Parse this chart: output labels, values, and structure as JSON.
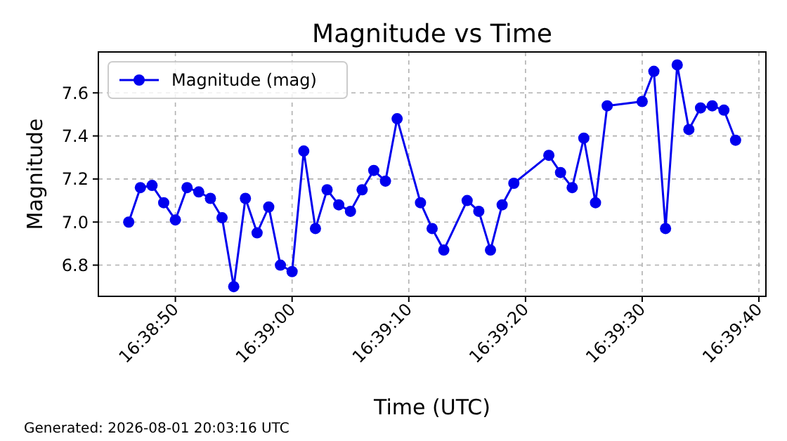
{
  "chart_data": {
    "type": "line",
    "title": "Magnitude vs Time",
    "xlabel": "Time (UTC)",
    "ylabel": "Magnitude",
    "annotations": [
      "Generated: 2026-08-01 20:03:16 UTC"
    ],
    "x": [
      16.646111,
      16.646389,
      16.646667,
      16.646944,
      16.647222,
      16.6475,
      16.647778,
      16.648056,
      16.648333,
      16.648611,
      16.648889,
      16.649167,
      16.649444,
      16.649722,
      16.65,
      16.650278,
      16.650556,
      16.650833,
      16.651111,
      16.651389,
      16.651667,
      16.651944,
      16.652222,
      16.6525,
      16.653056,
      16.653333,
      16.653611,
      16.654167,
      16.654444,
      16.654722,
      16.655,
      16.655278,
      16.656111,
      16.656389,
      16.656667,
      16.656944,
      16.657222,
      16.6575,
      16.658333,
      16.658611,
      16.658889,
      16.659167,
      16.659444,
      16.659722,
      16.66,
      16.660278,
      16.660556
    ],
    "series": [
      {
        "name": "Magnitude (mag)",
        "color": "#0000ee",
        "values": [
          7.0,
          7.16,
          7.17,
          7.09,
          7.01,
          7.16,
          7.14,
          7.11,
          7.02,
          6.7,
          7.11,
          6.95,
          7.07,
          6.8,
          6.77,
          7.33,
          6.97,
          7.15,
          7.08,
          7.05,
          7.15,
          7.24,
          7.19,
          7.48,
          7.09,
          6.97,
          6.87,
          7.1,
          7.05,
          6.87,
          7.08,
          7.18,
          7.31,
          7.23,
          7.16,
          7.39,
          7.09,
          7.54,
          7.56,
          7.7,
          6.97,
          7.73,
          7.43,
          7.53,
          7.54,
          7.52,
          7.38
        ]
      }
    ],
    "xlim": [
      16.645389,
      16.661278
    ],
    "xticks": [
      {
        "value": 16.647222,
        "label": "16:38:50"
      },
      {
        "value": 16.65,
        "label": "16:39:00"
      },
      {
        "value": 16.652778,
        "label": "16:39:10"
      },
      {
        "value": 16.655556,
        "label": "16:39:20"
      },
      {
        "value": 16.658333,
        "label": "16:39:30"
      },
      {
        "value": 16.661111,
        "label": "16:39:40"
      }
    ],
    "ylim": [
      6.655,
      7.79
    ],
    "yticks": [
      6.8,
      {
        "value": 7,
        "label": "7.0"
      },
      7.2,
      7.4,
      7.6
    ],
    "grid": true,
    "legend": "top left",
    "marker": "circle",
    "line_style": "solid"
  }
}
